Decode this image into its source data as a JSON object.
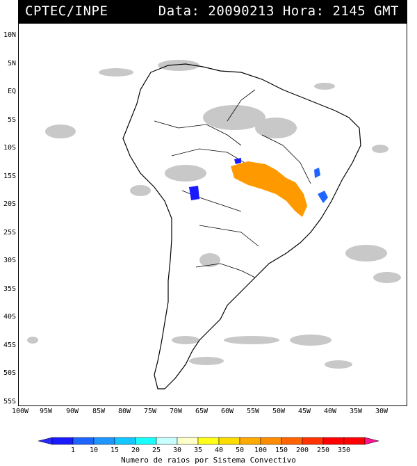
{
  "header": {
    "agency": "CPTEC/INPE",
    "stamp": "Data: 20090213 Hora: 2145 GMT"
  },
  "map": {
    "lat_ticks": [
      "10N",
      "5N",
      "EQ",
      "5S",
      "10S",
      "15S",
      "20S",
      "25S",
      "30S",
      "35S",
      "40S",
      "45S",
      "50S",
      "55S"
    ],
    "lon_ticks": [
      "100W",
      "95W",
      "90W",
      "85W",
      "80W",
      "75W",
      "70W",
      "65W",
      "60W",
      "55W",
      "50W",
      "45W",
      "40W",
      "35W",
      "30W"
    ]
  },
  "legend": {
    "title": "Numero de raios por Sistema Convectivo",
    "bins": [
      {
        "label": "1",
        "color": "#1a1aff"
      },
      {
        "label": "10",
        "color": "#1e64ff"
      },
      {
        "label": "15",
        "color": "#1e96ff"
      },
      {
        "label": "20",
        "color": "#12c8ff"
      },
      {
        "label": "25",
        "color": "#19ffff"
      },
      {
        "label": "30",
        "color": "#c8ffff"
      },
      {
        "label": "35",
        "color": "#ffffc8"
      },
      {
        "label": "40",
        "color": "#ffff19"
      },
      {
        "label": "50",
        "color": "#ffdc00"
      },
      {
        "label": "100",
        "color": "#ffaa00"
      },
      {
        "label": "150",
        "color": "#ff8c00"
      },
      {
        "label": "200",
        "color": "#ff6400"
      },
      {
        "label": "250",
        "color": "#ff3200"
      },
      {
        "label": "350",
        "color": "#ff0000"
      }
    ],
    "low_end_color": "#2828ff",
    "high_end_color": "#ff1493"
  },
  "colors": {
    "cloud": "#c8c8c8",
    "coast": "#000000",
    "storm_orange": "#ff9900",
    "storm_blue": "#1e64ff",
    "storm_navy": "#1a1aff"
  }
}
